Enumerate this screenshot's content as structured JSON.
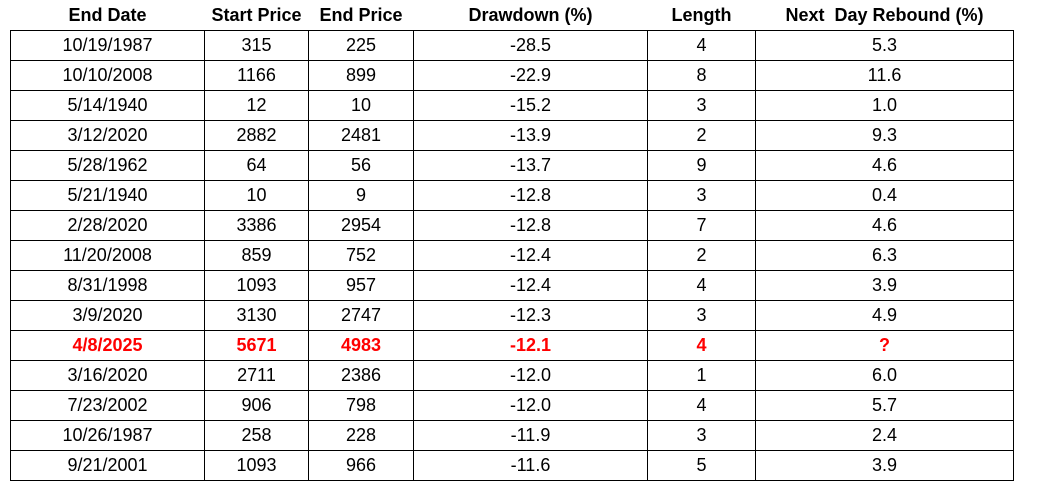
{
  "colors": {
    "text": "#000000",
    "highlight_text": "#FF0000",
    "border": "#000000",
    "background": "#FFFFFF"
  },
  "table": {
    "columns": [
      {
        "label": "End Date"
      },
      {
        "label": "Start Price"
      },
      {
        "label": "End Price"
      },
      {
        "label": "Drawdown (%)"
      },
      {
        "label": "Length"
      },
      {
        "label": "Next  Day Rebound (%)"
      }
    ],
    "rows": [
      {
        "end_date": "10/19/1987",
        "start_price": "315",
        "end_price": "225",
        "drawdown_pct": "-28.5",
        "length": "4",
        "next_day_rebound_pct": "5.3",
        "highlight": false
      },
      {
        "end_date": "10/10/2008",
        "start_price": "1166",
        "end_price": "899",
        "drawdown_pct": "-22.9",
        "length": "8",
        "next_day_rebound_pct": "11.6",
        "highlight": false
      },
      {
        "end_date": "5/14/1940",
        "start_price": "12",
        "end_price": "10",
        "drawdown_pct": "-15.2",
        "length": "3",
        "next_day_rebound_pct": "1.0",
        "highlight": false
      },
      {
        "end_date": "3/12/2020",
        "start_price": "2882",
        "end_price": "2481",
        "drawdown_pct": "-13.9",
        "length": "2",
        "next_day_rebound_pct": "9.3",
        "highlight": false
      },
      {
        "end_date": "5/28/1962",
        "start_price": "64",
        "end_price": "56",
        "drawdown_pct": "-13.7",
        "length": "9",
        "next_day_rebound_pct": "4.6",
        "highlight": false
      },
      {
        "end_date": "5/21/1940",
        "start_price": "10",
        "end_price": "9",
        "drawdown_pct": "-12.8",
        "length": "3",
        "next_day_rebound_pct": "0.4",
        "highlight": false
      },
      {
        "end_date": "2/28/2020",
        "start_price": "3386",
        "end_price": "2954",
        "drawdown_pct": "-12.8",
        "length": "7",
        "next_day_rebound_pct": "4.6",
        "highlight": false
      },
      {
        "end_date": "11/20/2008",
        "start_price": "859",
        "end_price": "752",
        "drawdown_pct": "-12.4",
        "length": "2",
        "next_day_rebound_pct": "6.3",
        "highlight": false
      },
      {
        "end_date": "8/31/1998",
        "start_price": "1093",
        "end_price": "957",
        "drawdown_pct": "-12.4",
        "length": "4",
        "next_day_rebound_pct": "3.9",
        "highlight": false
      },
      {
        "end_date": "3/9/2020",
        "start_price": "3130",
        "end_price": "2747",
        "drawdown_pct": "-12.3",
        "length": "3",
        "next_day_rebound_pct": "4.9",
        "highlight": false
      },
      {
        "end_date": "4/8/2025",
        "start_price": "5671",
        "end_price": "4983",
        "drawdown_pct": "-12.1",
        "length": "4",
        "next_day_rebound_pct": "?",
        "highlight": true
      },
      {
        "end_date": "3/16/2020",
        "start_price": "2711",
        "end_price": "2386",
        "drawdown_pct": "-12.0",
        "length": "1",
        "next_day_rebound_pct": "6.0",
        "highlight": false
      },
      {
        "end_date": "7/23/2002",
        "start_price": "906",
        "end_price": "798",
        "drawdown_pct": "-12.0",
        "length": "4",
        "next_day_rebound_pct": "5.7",
        "highlight": false
      },
      {
        "end_date": "10/26/1987",
        "start_price": "258",
        "end_price": "228",
        "drawdown_pct": "-11.9",
        "length": "3",
        "next_day_rebound_pct": "2.4",
        "highlight": false
      },
      {
        "end_date": "9/21/2001",
        "start_price": "1093",
        "end_price": "966",
        "drawdown_pct": "-11.6",
        "length": "5",
        "next_day_rebound_pct": "3.9",
        "highlight": false
      }
    ]
  },
  "chart_data": {
    "type": "table",
    "title": "",
    "columns": [
      "End Date",
      "Start Price",
      "End Price",
      "Drawdown (%)",
      "Length",
      "Next  Day Rebound (%)"
    ],
    "rows": [
      [
        "10/19/1987",
        315,
        225,
        -28.5,
        4,
        5.3
      ],
      [
        "10/10/2008",
        1166,
        899,
        -22.9,
        8,
        11.6
      ],
      [
        "5/14/1940",
        12,
        10,
        -15.2,
        3,
        1.0
      ],
      [
        "3/12/2020",
        2882,
        2481,
        -13.9,
        2,
        9.3
      ],
      [
        "5/28/1962",
        64,
        56,
        -13.7,
        9,
        4.6
      ],
      [
        "5/21/1940",
        10,
        9,
        -12.8,
        3,
        0.4
      ],
      [
        "2/28/2020",
        3386,
        2954,
        -12.8,
        7,
        4.6
      ],
      [
        "11/20/2008",
        859,
        752,
        -12.4,
        2,
        6.3
      ],
      [
        "8/31/1998",
        1093,
        957,
        -12.4,
        4,
        3.9
      ],
      [
        "3/9/2020",
        3130,
        2747,
        -12.3,
        3,
        4.9
      ],
      [
        "4/8/2025",
        5671,
        4983,
        -12.1,
        4,
        "?"
      ],
      [
        "3/16/2020",
        2711,
        2386,
        -12.0,
        1,
        6.0
      ],
      [
        "7/23/2002",
        906,
        798,
        -12.0,
        4,
        5.7
      ],
      [
        "10/26/1987",
        258,
        228,
        -11.9,
        3,
        2.4
      ],
      [
        "9/21/2001",
        1093,
        966,
        -11.6,
        5,
        3.9
      ]
    ],
    "highlighted_row_index": 10,
    "highlight_note": "Row 4/8/2025 rendered in red bold; rebound value unknown (?)"
  }
}
